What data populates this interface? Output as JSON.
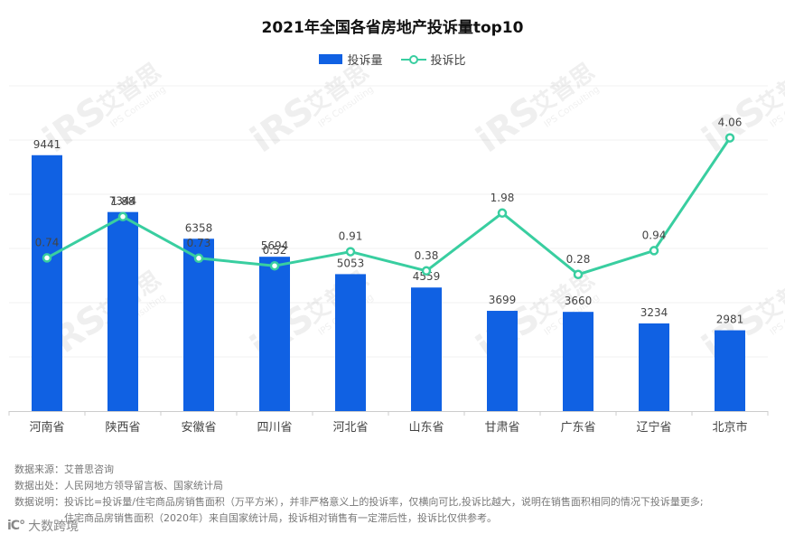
{
  "chart_data": {
    "type": "bar+line",
    "title": "2021年全国各省房地产投诉量top10",
    "categories": [
      "河南省",
      "陕西省",
      "安徽省",
      "四川省",
      "河北省",
      "山东省",
      "甘肃省",
      "广东省",
      "辽宁省",
      "北京市"
    ],
    "series": [
      {
        "name": "投诉量",
        "type": "bar",
        "values": [
          9441,
          7344,
          6358,
          5694,
          5053,
          4559,
          3699,
          3660,
          3234,
          2981
        ],
        "color": "#1061E3"
      },
      {
        "name": "投诉比",
        "type": "line",
        "values": [
          0.74,
          1.88,
          0.73,
          0.52,
          0.91,
          0.38,
          1.98,
          0.28,
          0.94,
          4.06
        ],
        "color": "#39CEA0"
      }
    ],
    "y_bar_range": [
      0,
      12000
    ],
    "y_line_range": [
      -3.5,
      5.5
    ],
    "grid": true,
    "legend_position": "top-center"
  },
  "watermark": {
    "logo": "iRS",
    "cn": "艾普思",
    "en": "IPS Consulting"
  },
  "notes": [
    {
      "label": "数据来源：",
      "lines": [
        "艾普思咨询"
      ]
    },
    {
      "label": "数据出处：",
      "lines": [
        "人民网地方领导留言板、国家统计局"
      ]
    },
    {
      "label": "数据说明：",
      "lines": [
        "投诉比=投诉量/住宅商品房销售面积（万平方米），并非严格意义上的投诉率，仅横向可比,投诉比越大，说明在销售面积相同的情况下投诉量更多;",
        "住宅商品房销售面积（2020年）来自国家统计局，投诉相对销售有一定滞后性，投诉比仅供参考。"
      ]
    }
  ],
  "brand": {
    "mark": "iC°",
    "text": "大数跨境"
  }
}
